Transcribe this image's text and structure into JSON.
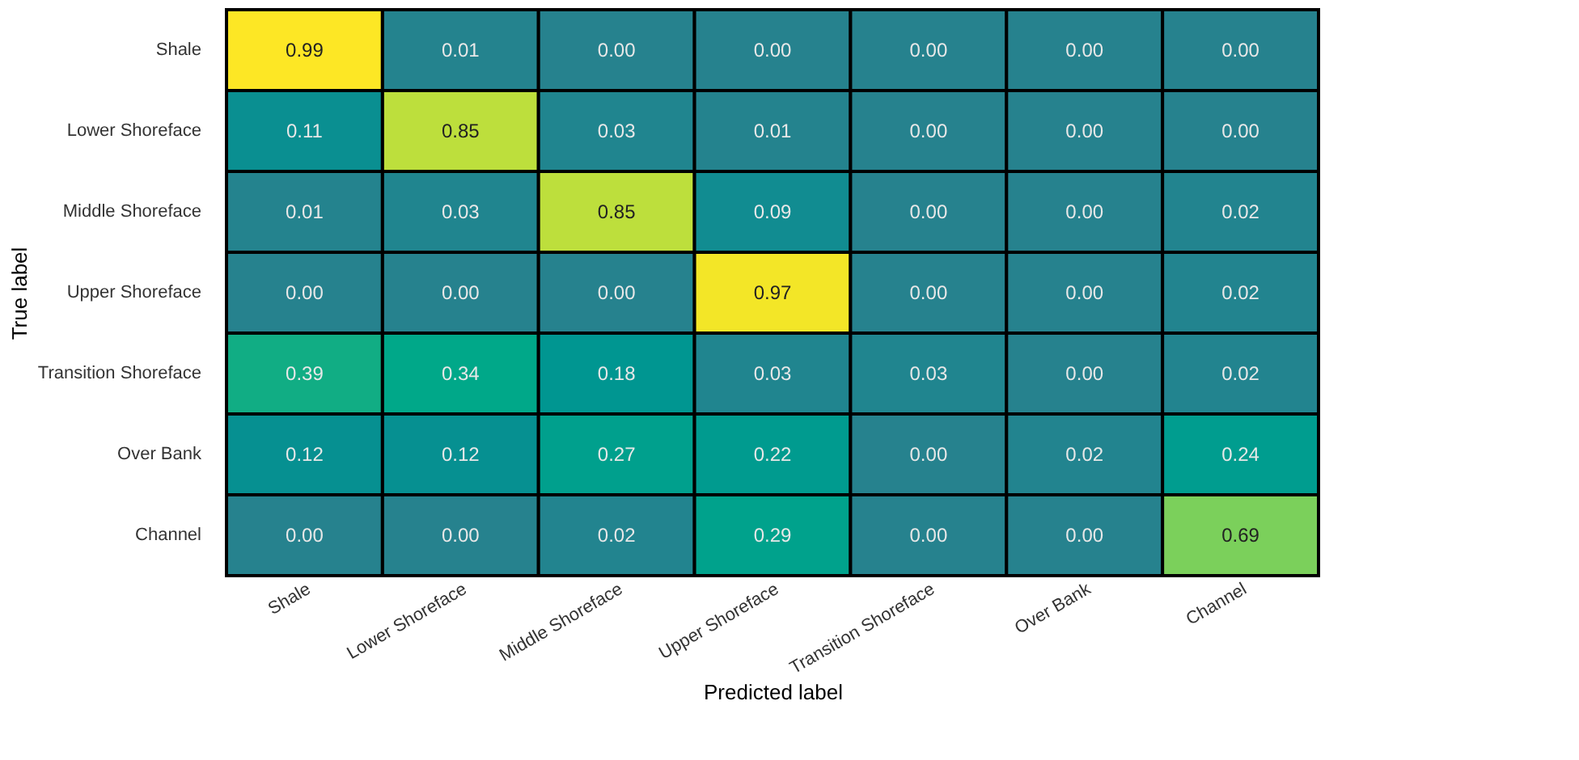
{
  "chart_data": {
    "type": "heatmap",
    "xlabel": "Predicted label",
    "ylabel": "True label",
    "categories": [
      "Shale",
      "Lower Shoreface",
      "Middle Shoreface",
      "Upper Shoreface",
      "Transition Shoreface",
      "Over Bank",
      "Channel"
    ],
    "y_categories": [
      "Shale",
      "Lower Shoreface",
      "Middle Shoreface",
      "Upper Shoreface",
      "Transition Shoreface",
      "Over Bank",
      "Channel"
    ],
    "cells": [
      [
        0.99,
        0.01,
        0.0,
        0.0,
        0.0,
        0.0,
        0.0
      ],
      [
        0.11,
        0.85,
        0.03,
        0.01,
        0.0,
        0.0,
        0.0
      ],
      [
        0.01,
        0.03,
        0.85,
        0.09,
        0.0,
        0.0,
        0.02
      ],
      [
        0.0,
        0.0,
        0.0,
        0.97,
        0.0,
        0.0,
        0.02
      ],
      [
        0.39,
        0.34,
        0.18,
        0.03,
        0.03,
        0.0,
        0.02
      ],
      [
        0.12,
        0.12,
        0.27,
        0.22,
        0.0,
        0.02,
        0.24
      ],
      [
        0.0,
        0.0,
        0.02,
        0.29,
        0.0,
        0.0,
        0.69
      ]
    ],
    "cell_labels": [
      [
        "0.99",
        "0.01",
        "0.00",
        "0.00",
        "0.00",
        "0.00",
        "0.00"
      ],
      [
        "0.11",
        "0.85",
        "0.03",
        "0.01",
        "0.00",
        "0.00",
        "0.00"
      ],
      [
        "0.01",
        "0.03",
        "0.85",
        "0.09",
        "0.00",
        "0.00",
        "0.02"
      ],
      [
        "0.00",
        "0.00",
        "0.00",
        "0.97",
        "0.00",
        "0.00",
        "0.02"
      ],
      [
        "0.39",
        "0.34",
        "0.18",
        "0.03",
        "0.03",
        "0.00",
        "0.02"
      ],
      [
        "0.12",
        "0.12",
        "0.27",
        "0.22",
        "0.00",
        "0.02",
        "0.24"
      ],
      [
        "0.00",
        "0.00",
        "0.02",
        "0.29",
        "0.00",
        "0.00",
        "0.69"
      ]
    ],
    "data_labels": true,
    "legend": false
  }
}
